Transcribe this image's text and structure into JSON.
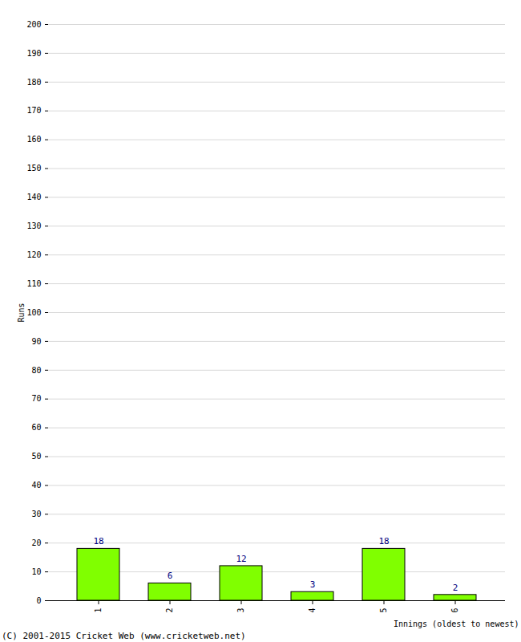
{
  "chart_data": {
    "type": "bar",
    "categories": [
      "1",
      "2",
      "3",
      "4",
      "5",
      "6"
    ],
    "values": [
      18,
      6,
      12,
      3,
      18,
      2
    ],
    "color": "#80ff00",
    "x_label": "Innings (oldest to newest)",
    "y_label": "Runs",
    "caption": "(C) 2001-2015 Cricket Web (www.cricketweb.net)",
    "ylim": [
      0,
      200
    ],
    "yticks": [
      0,
      10,
      20,
      30,
      40,
      50,
      60,
      70,
      80,
      90,
      100,
      110,
      120,
      130,
      140,
      150,
      160,
      170,
      180,
      190,
      200
    ],
    "grid": true,
    "data_labels": true
  }
}
